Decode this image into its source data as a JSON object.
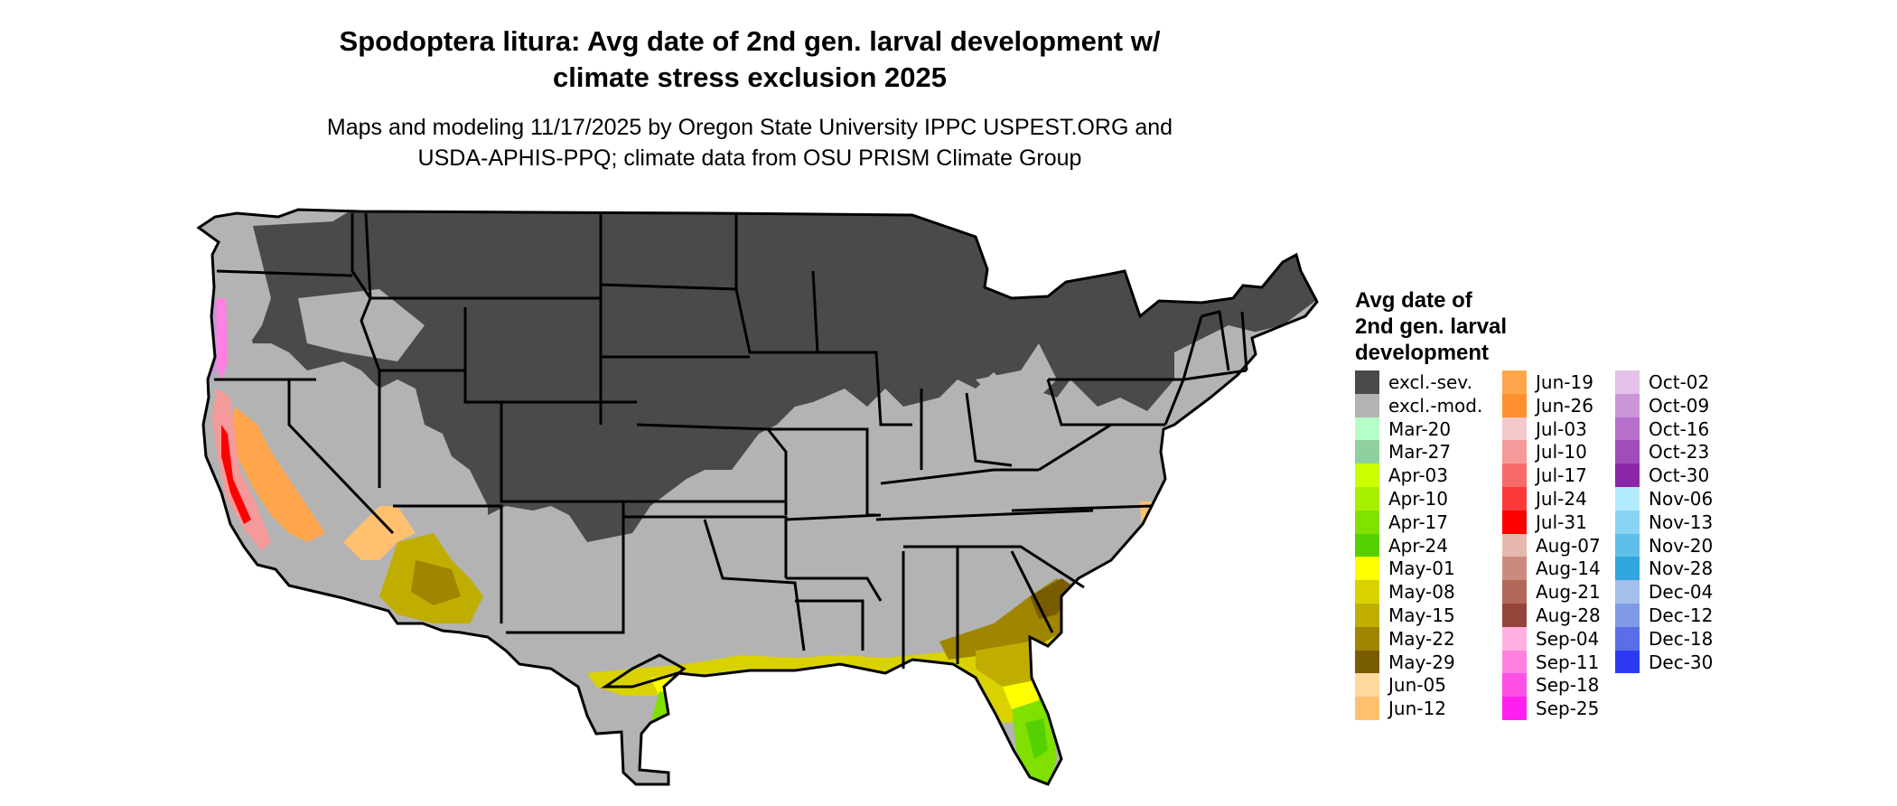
{
  "title": {
    "line1": "Spodoptera litura: Avg date of 2nd gen. larval development w/",
    "line2": "climate stress exclusion 2025"
  },
  "subtitle": {
    "line1": "Maps and modeling 11/17/2025 by Oregon State University IPPC USPEST.ORG and",
    "line2": "USDA-APHIS-PPQ; climate data from OSU PRISM Climate Group"
  },
  "legend": {
    "title_lines": [
      "Avg date of",
      "2nd gen. larval",
      "development"
    ],
    "columns": [
      [
        {
          "label": "excl.-sev.",
          "color": "#4a4a4a"
        },
        {
          "label": "excl.-mod.",
          "color": "#b3b3b3"
        },
        {
          "label": "Mar-20",
          "color": "#b3ffc7"
        },
        {
          "label": "Mar-27",
          "color": "#8fd19e"
        },
        {
          "label": "Apr-03",
          "color": "#ccff00"
        },
        {
          "label": "Apr-10",
          "color": "#a8f000"
        },
        {
          "label": "Apr-17",
          "color": "#80e000"
        },
        {
          "label": "Apr-24",
          "color": "#55d000"
        },
        {
          "label": "May-01",
          "color": "#ffff00"
        },
        {
          "label": "May-08",
          "color": "#d9d200"
        },
        {
          "label": "May-15",
          "color": "#bfae00"
        },
        {
          "label": "May-22",
          "color": "#9f8500"
        },
        {
          "label": "May-29",
          "color": "#7a5c00"
        },
        {
          "label": "Jun-05",
          "color": "#ffd9a0"
        },
        {
          "label": "Jun-12",
          "color": "#ffc070"
        }
      ],
      [
        {
          "label": "Jun-19",
          "color": "#ffa64d"
        },
        {
          "label": "Jun-26",
          "color": "#ff9030"
        },
        {
          "label": "Jul-03",
          "color": "#f5c8cc"
        },
        {
          "label": "Jul-10",
          "color": "#f59a9a"
        },
        {
          "label": "Jul-17",
          "color": "#f86a6a"
        },
        {
          "label": "Jul-24",
          "color": "#fa3a3a"
        },
        {
          "label": "Jul-31",
          "color": "#ff0000"
        },
        {
          "label": "Aug-07",
          "color": "#e6b8ad"
        },
        {
          "label": "Aug-14",
          "color": "#cc8a7e"
        },
        {
          "label": "Aug-21",
          "color": "#b06858"
        },
        {
          "label": "Aug-28",
          "color": "#94443a"
        },
        {
          "label": "Sep-04",
          "color": "#ffb0e0"
        },
        {
          "label": "Sep-11",
          "color": "#ff80e0"
        },
        {
          "label": "Sep-18",
          "color": "#ff50e6"
        },
        {
          "label": "Sep-25",
          "color": "#ff20f0"
        }
      ],
      [
        {
          "label": "Oct-02",
          "color": "#e3c1ea"
        },
        {
          "label": "Oct-09",
          "color": "#cb95d8"
        },
        {
          "label": "Oct-16",
          "color": "#b66fcb"
        },
        {
          "label": "Oct-23",
          "color": "#a04cba"
        },
        {
          "label": "Oct-30",
          "color": "#8c26a8"
        },
        {
          "label": "Nov-06",
          "color": "#b3ecff"
        },
        {
          "label": "Nov-13",
          "color": "#89d4f5"
        },
        {
          "label": "Nov-20",
          "color": "#60bfe8"
        },
        {
          "label": "Nov-28",
          "color": "#30a6dc"
        },
        {
          "label": "Dec-04",
          "color": "#a3bfea"
        },
        {
          "label": "Dec-12",
          "color": "#7f9ae6"
        },
        {
          "label": "Dec-18",
          "color": "#5a6ee8"
        },
        {
          "label": "Dec-30",
          "color": "#2b3af0"
        }
      ]
    ]
  },
  "map": {
    "colors": {
      "severe": "#4a4a4a",
      "moderate": "#b3b3b3",
      "border": "#000000",
      "may_early": "#d9d200",
      "may_mid": "#bfae00",
      "may_late": "#9f8500",
      "may_end": "#7a5c00",
      "may_first": "#ffff00",
      "apr_a": "#a8f000",
      "apr_b": "#80e000",
      "apr_c": "#55d000",
      "jun": "#ffc070",
      "jun_b": "#ffa64d",
      "jul_pink": "#f59a9a",
      "jul_red": "#ff0000",
      "sep": "#ff80e0",
      "oct": "#cb95d8"
    }
  }
}
